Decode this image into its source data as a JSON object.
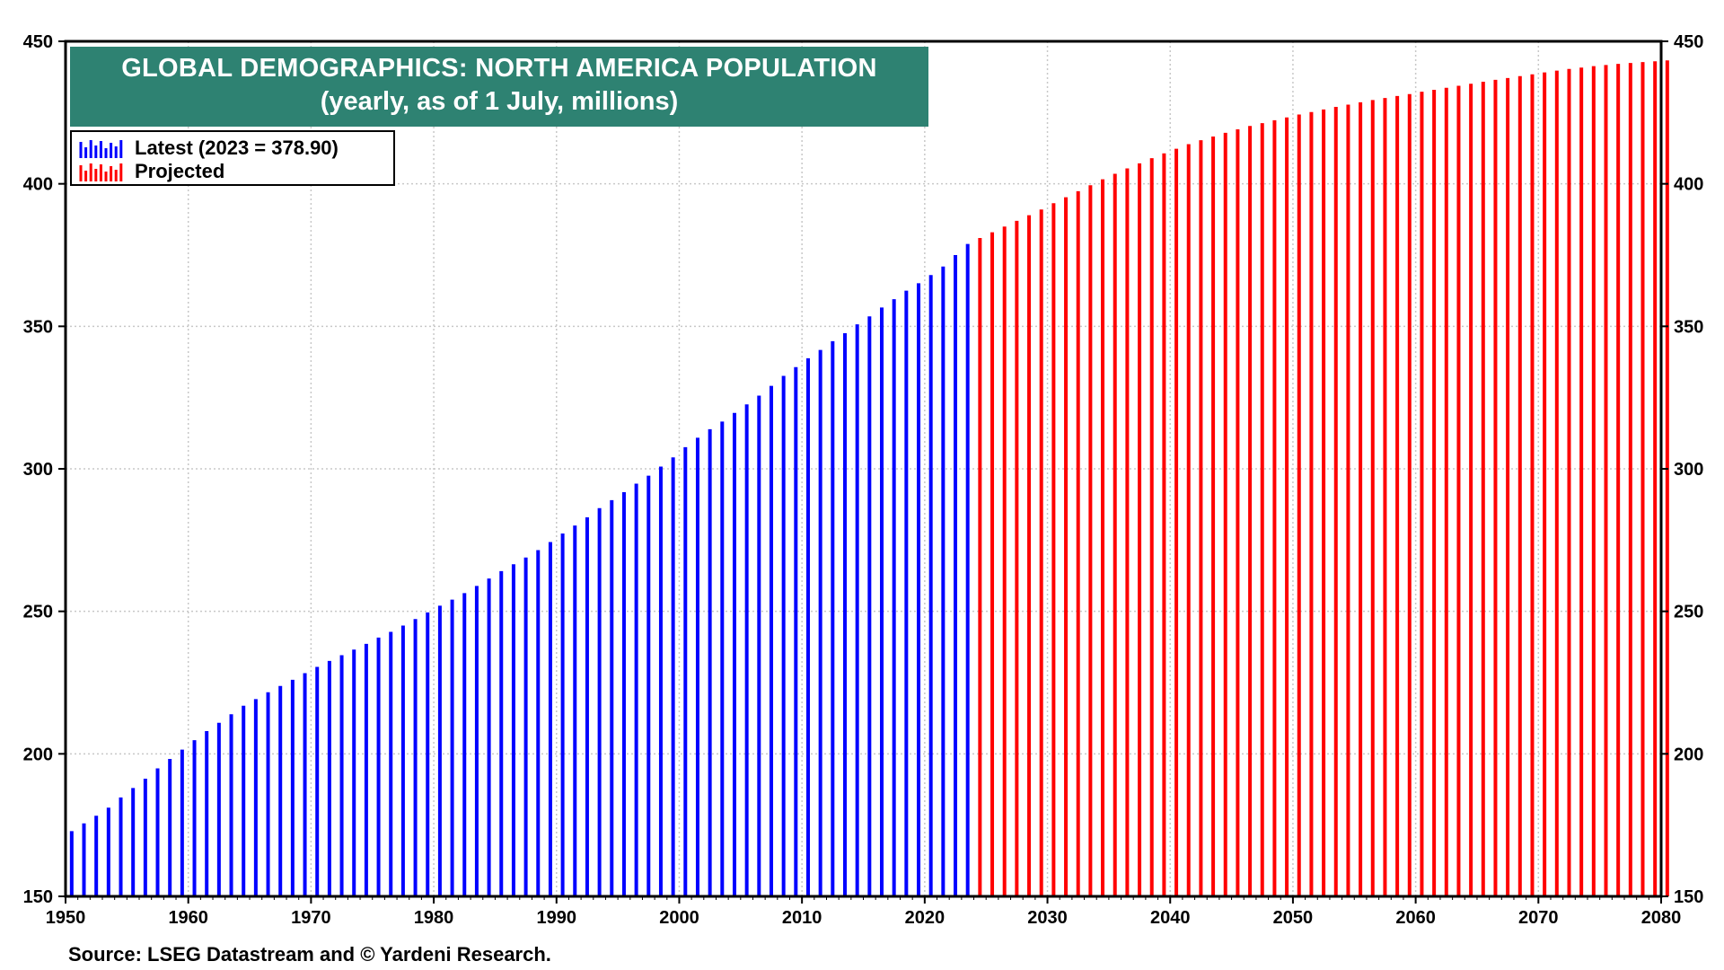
{
  "chart_data": {
    "type": "bar",
    "title": "GLOBAL DEMOGRAPHICS: NORTH AMERICA POPULATION",
    "subtitle": "(yearly, as of 1 July, millions)",
    "xlim": [
      1950,
      2080
    ],
    "ylim": [
      150,
      450
    ],
    "x_ticks": [
      1950,
      1960,
      1970,
      1980,
      1990,
      2000,
      2010,
      2020,
      2030,
      2040,
      2050,
      2060,
      2070,
      2080
    ],
    "y_ticks": [
      150,
      200,
      250,
      300,
      350,
      400,
      450
    ],
    "grid": true,
    "legend_position": "top-left",
    "series": [
      {
        "name": "Latest (2023 = 378.90)",
        "color": "#0000ff",
        "x": [
          1950,
          1951,
          1952,
          1953,
          1954,
          1955,
          1956,
          1957,
          1958,
          1959,
          1960,
          1961,
          1962,
          1963,
          1964,
          1965,
          1966,
          1967,
          1968,
          1969,
          1970,
          1971,
          1972,
          1973,
          1974,
          1975,
          1976,
          1977,
          1978,
          1979,
          1980,
          1981,
          1982,
          1983,
          1984,
          1985,
          1986,
          1987,
          1988,
          1989,
          1990,
          1991,
          1992,
          1993,
          1994,
          1995,
          1996,
          1997,
          1998,
          1999,
          2000,
          2001,
          2002,
          2003,
          2004,
          2005,
          2006,
          2007,
          2008,
          2009,
          2010,
          2011,
          2012,
          2013,
          2014,
          2015,
          2016,
          2017,
          2018,
          2019,
          2020,
          2021,
          2022,
          2023
        ],
        "values": [
          172.9,
          175.6,
          178.3,
          181.1,
          184.7,
          188.0,
          191.3,
          194.9,
          198.2,
          201.5,
          204.8,
          208.0,
          210.9,
          213.9,
          216.9,
          219.2,
          221.6,
          223.8,
          226.0,
          228.3,
          230.5,
          232.6,
          234.6,
          236.6,
          238.6,
          240.8,
          242.8,
          245.0,
          247.3,
          249.6,
          252.0,
          254.1,
          256.4,
          258.9,
          261.5,
          264.1,
          266.5,
          268.9,
          271.5,
          274.3,
          277.3,
          280.1,
          283.0,
          286.2,
          289.0,
          291.8,
          294.8,
          297.6,
          300.8,
          304.0,
          307.6,
          310.9,
          313.9,
          316.6,
          319.6,
          322.6,
          325.7,
          329.1,
          332.6,
          335.7,
          338.8,
          341.7,
          344.8,
          347.6,
          350.7,
          353.5,
          356.6,
          359.5,
          362.5,
          365.1,
          368.0,
          371.0,
          375.0,
          378.9
        ]
      },
      {
        "name": "Projected",
        "color": "#ff0000",
        "x": [
          2024,
          2025,
          2026,
          2027,
          2028,
          2029,
          2030,
          2031,
          2032,
          2033,
          2034,
          2035,
          2036,
          2037,
          2038,
          2039,
          2040,
          2041,
          2042,
          2043,
          2044,
          2045,
          2046,
          2047,
          2048,
          2049,
          2050,
          2051,
          2052,
          2053,
          2054,
          2055,
          2056,
          2057,
          2058,
          2059,
          2060,
          2061,
          2062,
          2063,
          2064,
          2065,
          2066,
          2067,
          2068,
          2069,
          2070,
          2071,
          2072,
          2073,
          2074,
          2075,
          2076,
          2077,
          2078,
          2079,
          2080
        ],
        "values": [
          381.0,
          383.0,
          385.0,
          387.0,
          389.0,
          391.0,
          393.2,
          395.3,
          397.4,
          399.5,
          401.6,
          403.5,
          405.4,
          407.2,
          409.0,
          410.7,
          412.3,
          413.9,
          415.3,
          416.6,
          417.9,
          419.1,
          420.3,
          421.3,
          422.3,
          423.3,
          424.3,
          425.2,
          426.1,
          427.0,
          427.8,
          428.6,
          429.4,
          430.1,
          430.8,
          431.5,
          432.3,
          433.0,
          433.7,
          434.4,
          435.1,
          435.8,
          436.5,
          437.1,
          437.8,
          438.4,
          439.1,
          439.7,
          440.3,
          440.8,
          441.3,
          441.7,
          442.1,
          442.4,
          442.7,
          443.0,
          443.3
        ]
      }
    ],
    "legend": [
      {
        "label": "Latest (2023 = 378.90)",
        "color": "#0000ff"
      },
      {
        "label": "Projected",
        "color": "#ff0000"
      }
    ]
  },
  "source_text": "Source: LSEG Datastream and © Yardeni Research."
}
